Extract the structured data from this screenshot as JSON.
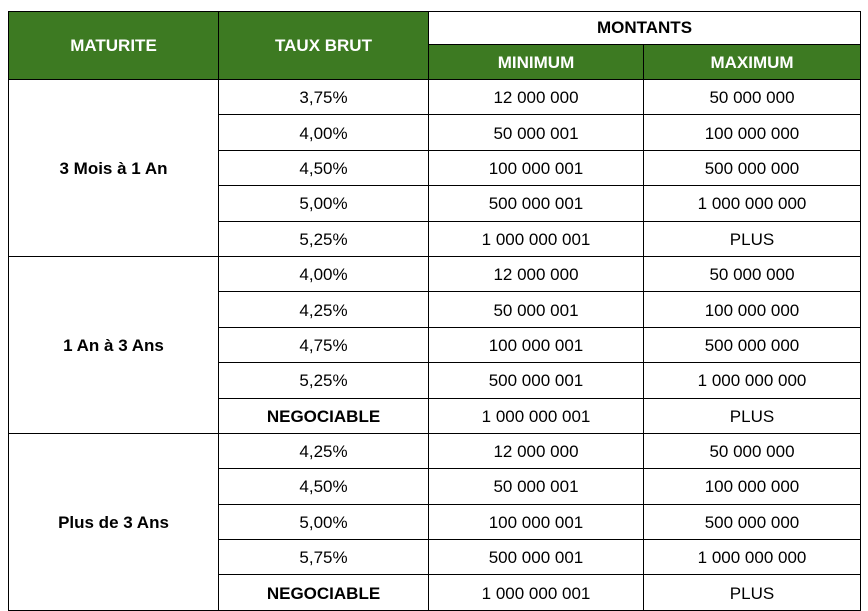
{
  "headers": {
    "maturite": "MATURITE",
    "taux_brut": "TAUX BRUT",
    "montants": "MONTANTS",
    "minimum": "MINIMUM",
    "maximum": "MAXIMUM"
  },
  "colors": {
    "header_green": "#3d7a22"
  },
  "groups": [
    {
      "maturite": "3 Mois à 1 An",
      "rows": [
        {
          "taux": "3,75%",
          "min": "12 000 000",
          "max": "50 000 000"
        },
        {
          "taux": "4,00%",
          "min": "50 000 001",
          "max": "100 000 000"
        },
        {
          "taux": "4,50%",
          "min": "100 000 001",
          "max": "500 000 000"
        },
        {
          "taux": "5,00%",
          "min": "500 000 001",
          "max": "1 000 000 000"
        },
        {
          "taux": "5,25%",
          "min": "1 000 000 001",
          "max": "PLUS"
        }
      ]
    },
    {
      "maturite": "1 An à 3 Ans",
      "rows": [
        {
          "taux": "4,00%",
          "min": "12 000 000",
          "max": "50 000 000"
        },
        {
          "taux": "4,25%",
          "min": "50 000 001",
          "max": "100 000 000"
        },
        {
          "taux": "4,75%",
          "min": "100 000 001",
          "max": "500 000 000"
        },
        {
          "taux": "5,25%",
          "min": "500 000 001",
          "max": "1 000 000 000"
        },
        {
          "taux": "NEGOCIABLE",
          "min": "1 000 000 001",
          "max": "PLUS"
        }
      ]
    },
    {
      "maturite": "Plus de 3 Ans",
      "rows": [
        {
          "taux": "4,25%",
          "min": "12 000 000",
          "max": "50 000 000"
        },
        {
          "taux": "4,50%",
          "min": "50 000 001",
          "max": "100 000 000"
        },
        {
          "taux": "5,00%",
          "min": "100 000 001",
          "max": "500 000 000"
        },
        {
          "taux": "5,75%",
          "min": "500 000 001",
          "max": "1 000 000 000"
        },
        {
          "taux": "NEGOCIABLE",
          "min": "1 000 000 001",
          "max": "PLUS"
        }
      ]
    }
  ]
}
